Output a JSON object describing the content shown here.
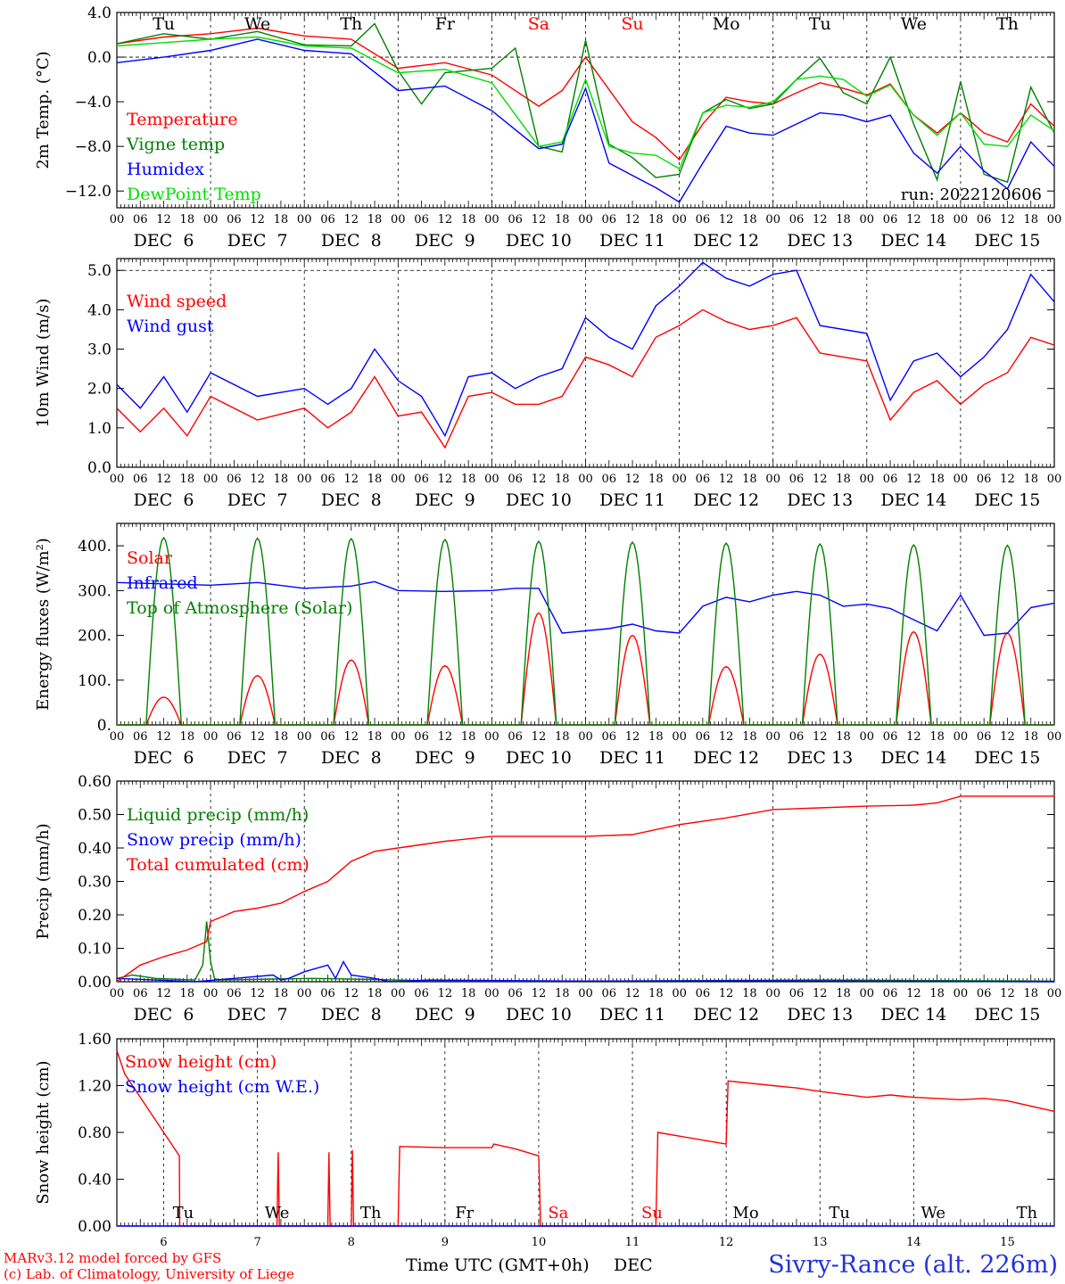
{
  "colors": {
    "red": "#ff0000",
    "green": "#008000",
    "light_green": "#00e000",
    "blue": "#0000ff",
    "black": "#000000",
    "title_blue": "#2233dd"
  },
  "days": {
    "dates": [
      "DEC  6",
      "DEC  7",
      "DEC  8",
      "DEC  9",
      "DEC 10",
      "DEC 11",
      "DEC 12",
      "DEC 13",
      "DEC 14",
      "DEC 15"
    ],
    "weekdays": [
      "Tu",
      "We",
      "Th",
      "Fr",
      "Sa",
      "Su",
      "Mo",
      "Tu",
      "We",
      "Th"
    ],
    "weekend_flags": [
      false,
      false,
      false,
      false,
      true,
      true,
      false,
      false,
      false,
      false
    ],
    "bottom_numbers": [
      "6",
      "7",
      "8",
      "9",
      "10",
      "11",
      "12",
      "13",
      "14",
      "15"
    ],
    "hour_labels": [
      "00",
      "06",
      "12",
      "18"
    ],
    "final_hour_label": "00"
  },
  "footer": {
    "credit_line1": "MARv3.12 model forced by GFS",
    "credit_line2": "(c) Lab. of Climatology, University of Liege",
    "axis_label": "Time UTC (GMT+0h)",
    "axis_month": "DEC",
    "station": "Sivry-Rance (alt. 226m)"
  },
  "chart_data": [
    {
      "type": "line",
      "ylabel": "2m Temp. (°C)",
      "ylim": [
        -13.5,
        4.0
      ],
      "yticks": [
        4.0,
        0.0,
        -4.0,
        -8.0,
        -12.0
      ],
      "ytick_labels": [
        "4.0",
        "0.0",
        "−4.0",
        "−8.0",
        "−12.0"
      ],
      "ref_line": 0.0,
      "x_unit": "hours since DEC 6 00 UTC",
      "xlim": [
        0,
        240
      ],
      "annotation": "run: 2022120606",
      "series": [
        {
          "name": "Temperature",
          "color": "#ff0000",
          "x": [
            0,
            12,
            24,
            36,
            48,
            60,
            72,
            84,
            96,
            108,
            114,
            120,
            132,
            138,
            144,
            150,
            156,
            162,
            168,
            174,
            180,
            186,
            192,
            198,
            204,
            210,
            216,
            222,
            228,
            234,
            240
          ],
          "y": [
            1.2,
            1.8,
            2.1,
            2.6,
            1.9,
            1.6,
            -1.0,
            -0.5,
            -1.6,
            -4.4,
            -3.0,
            0.0,
            -5.8,
            -7.2,
            -9.2,
            -6.0,
            -3.6,
            -4.0,
            -4.2,
            -3.2,
            -2.3,
            -2.8,
            -3.4,
            -2.4,
            -5.2,
            -6.8,
            -5.0,
            -6.8,
            -7.6,
            -4.2,
            -6.2
          ]
        },
        {
          "name": "Vigne temp",
          "color": "#008000",
          "x": [
            0,
            12,
            24,
            36,
            48,
            60,
            66,
            72,
            78,
            84,
            96,
            102,
            108,
            114,
            120,
            126,
            132,
            138,
            144,
            150,
            156,
            162,
            168,
            174,
            180,
            186,
            192,
            198,
            204,
            210,
            216,
            222,
            228,
            234,
            240
          ],
          "y": [
            1.2,
            2.1,
            1.6,
            2.3,
            1.1,
            1.0,
            3.0,
            -1.2,
            -4.2,
            -1.4,
            -1.0,
            0.8,
            -8.0,
            -8.5,
            1.5,
            -7.8,
            -9.0,
            -10.8,
            -10.5,
            -5.0,
            -3.8,
            -4.6,
            -4.2,
            -2.0,
            -0.1,
            -3.2,
            -4.2,
            0.0,
            -6.0,
            -11.0,
            -2.2,
            -10.5,
            -11.2,
            -2.7,
            -6.8
          ]
        },
        {
          "name": "Humidex",
          "color": "#0000ff",
          "x": [
            0,
            12,
            24,
            36,
            48,
            60,
            72,
            84,
            96,
            108,
            114,
            120,
            126,
            132,
            138,
            144,
            150,
            156,
            162,
            168,
            174,
            180,
            186,
            192,
            198,
            204,
            210,
            216,
            222,
            228,
            234,
            240
          ],
          "y": [
            -0.5,
            0.0,
            0.6,
            1.6,
            0.6,
            0.3,
            -3.0,
            -2.6,
            -4.8,
            -8.2,
            -7.8,
            -2.8,
            -9.5,
            -10.6,
            -11.7,
            -13.0,
            -9.5,
            -6.2,
            -6.8,
            -7.0,
            -6.0,
            -5.0,
            -5.2,
            -5.8,
            -5.2,
            -8.6,
            -10.4,
            -8.0,
            -10.2,
            -11.8,
            -7.6,
            -9.8
          ]
        },
        {
          "name": "DewPoint Temp",
          "color": "#00e000",
          "x": [
            0,
            12,
            24,
            36,
            48,
            60,
            72,
            84,
            96,
            108,
            114,
            120,
            126,
            132,
            138,
            144,
            150,
            156,
            162,
            168,
            174,
            180,
            186,
            192,
            198,
            204,
            210,
            216,
            222,
            228,
            234,
            240
          ],
          "y": [
            1.0,
            1.3,
            1.6,
            1.8,
            1.0,
            0.8,
            -1.4,
            -1.1,
            -2.3,
            -8.0,
            -7.6,
            -2.0,
            -8.0,
            -8.6,
            -8.8,
            -10.0,
            -5.0,
            -4.3,
            -4.5,
            -4.0,
            -2.0,
            -1.7,
            -2.0,
            -3.5,
            -2.5,
            -5.2,
            -7.0,
            -5.0,
            -7.8,
            -8.0,
            -5.2,
            -6.6
          ]
        }
      ]
    },
    {
      "type": "line",
      "ylabel": "10m Wind (m/s)",
      "ylim": [
        0.0,
        5.3
      ],
      "yticks": [
        0.0,
        1.0,
        2.0,
        3.0,
        4.0,
        5.0
      ],
      "ytick_labels": [
        "0.0",
        "1.0",
        "2.0",
        "3.0",
        "4.0",
        "5.0"
      ],
      "ref_line": 5.0,
      "xlim": [
        0,
        240
      ],
      "series": [
        {
          "name": "Wind speed",
          "color": "#ff0000",
          "x": [
            0,
            6,
            12,
            18,
            24,
            36,
            48,
            54,
            60,
            66,
            72,
            78,
            84,
            90,
            96,
            102,
            108,
            114,
            120,
            126,
            132,
            138,
            144,
            150,
            156,
            162,
            168,
            174,
            180,
            186,
            192,
            198,
            204,
            210,
            216,
            222,
            228,
            234,
            240
          ],
          "y": [
            1.5,
            0.9,
            1.5,
            0.8,
            1.8,
            1.2,
            1.5,
            1.0,
            1.4,
            2.3,
            1.3,
            1.4,
            0.5,
            1.8,
            1.9,
            1.6,
            1.6,
            1.8,
            2.8,
            2.6,
            2.3,
            3.3,
            3.6,
            4.0,
            3.7,
            3.5,
            3.6,
            3.8,
            2.9,
            2.8,
            2.7,
            1.2,
            1.9,
            2.2,
            1.6,
            2.1,
            2.4,
            3.3,
            3.1
          ]
        },
        {
          "name": "Wind gust",
          "color": "#0000ff",
          "x": [
            0,
            6,
            12,
            18,
            24,
            36,
            48,
            54,
            60,
            66,
            72,
            78,
            84,
            90,
            96,
            102,
            108,
            114,
            120,
            126,
            132,
            138,
            144,
            150,
            156,
            162,
            168,
            174,
            180,
            186,
            192,
            198,
            204,
            210,
            216,
            222,
            228,
            234,
            240
          ],
          "y": [
            2.1,
            1.5,
            2.3,
            1.4,
            2.4,
            1.8,
            2.0,
            1.6,
            2.0,
            3.0,
            2.2,
            1.8,
            0.8,
            2.3,
            2.4,
            2.0,
            2.3,
            2.5,
            3.8,
            3.3,
            3.0,
            4.1,
            4.6,
            5.2,
            4.8,
            4.6,
            4.9,
            5.0,
            3.6,
            3.5,
            3.4,
            1.7,
            2.7,
            2.9,
            2.3,
            2.8,
            3.5,
            4.9,
            4.2
          ]
        }
      ]
    },
    {
      "type": "line",
      "ylabel": "Energy fluxes (W/m²)",
      "ylim": [
        0,
        450
      ],
      "yticks": [
        0,
        100,
        200,
        300,
        400
      ],
      "ytick_labels": [
        "0.",
        "100.",
        "200.",
        "300.",
        "400."
      ],
      "xlim": [
        0,
        240
      ],
      "diurnal": {
        "sunrise_hour": 7.5,
        "sunset_hour": 16.5
      },
      "series": [
        {
          "name": "Solar",
          "color": "#ff0000",
          "daily_peaks": [
            62,
            110,
            145,
            132,
            250,
            200,
            130,
            158,
            208,
            205
          ]
        },
        {
          "name": "Infrared",
          "color": "#0000ff",
          "x": [
            0,
            12,
            24,
            36,
            48,
            60,
            66,
            72,
            84,
            96,
            102,
            108,
            114,
            120,
            126,
            132,
            138,
            144,
            150,
            156,
            162,
            168,
            174,
            180,
            186,
            192,
            198,
            204,
            210,
            216,
            222,
            228,
            234,
            240
          ],
          "y": [
            318,
            315,
            312,
            318,
            305,
            310,
            320,
            300,
            298,
            300,
            305,
            305,
            205,
            210,
            215,
            225,
            210,
            205,
            265,
            285,
            275,
            290,
            298,
            290,
            265,
            270,
            260,
            235,
            210,
            290,
            200,
            205,
            262,
            272
          ]
        },
        {
          "name": "Top of Atmosphere (Solar)",
          "color": "#008000",
          "daily_peaks": [
            418,
            417,
            416,
            414,
            410,
            408,
            406,
            404,
            402,
            401
          ]
        }
      ]
    },
    {
      "type": "line",
      "ylabel": "Precip (mm/h)",
      "ylim": [
        0.0,
        0.6
      ],
      "yticks": [
        0.0,
        0.1,
        0.2,
        0.3,
        0.4,
        0.5,
        0.6
      ],
      "ytick_labels": [
        "0.00",
        "0.10",
        "0.20",
        "0.30",
        "0.40",
        "0.50",
        "0.60"
      ],
      "xlim": [
        0,
        240
      ],
      "series": [
        {
          "name": "Liquid precip (mm/h)",
          "color": "#008000",
          "x": [
            0,
            4,
            10,
            20,
            22,
            23,
            24,
            25,
            26,
            40,
            50,
            60,
            80,
            120,
            180,
            200,
            240
          ],
          "y": [
            0.01,
            0.02,
            0.01,
            0.005,
            0.05,
            0.18,
            0.06,
            0.01,
            0.005,
            0.008,
            0.01,
            0.008,
            0.003,
            0.002,
            0.005,
            0.004,
            0.002
          ]
        },
        {
          "name": "Snow precip (mm/h)",
          "color": "#0000ff",
          "x": [
            0,
            10,
            20,
            30,
            40,
            42,
            44,
            48,
            54,
            56,
            58,
            60,
            66,
            70,
            80,
            120,
            160,
            240
          ],
          "y": [
            0.01,
            0.005,
            0.0,
            0.01,
            0.02,
            0.005,
            0.01,
            0.03,
            0.05,
            0.01,
            0.06,
            0.02,
            0.01,
            0.0,
            0.005,
            0.002,
            0.003,
            0.0
          ]
        },
        {
          "name": "Total cumulated (cm)",
          "color": "#ff0000",
          "x": [
            0,
            6,
            12,
            18,
            23,
            24,
            30,
            36,
            42,
            48,
            54,
            60,
            66,
            72,
            84,
            96,
            108,
            120,
            132,
            144,
            156,
            168,
            180,
            192,
            204,
            210,
            216,
            240
          ],
          "y": [
            0.0,
            0.05,
            0.075,
            0.095,
            0.12,
            0.18,
            0.21,
            0.22,
            0.235,
            0.27,
            0.3,
            0.36,
            0.39,
            0.4,
            0.42,
            0.435,
            0.435,
            0.435,
            0.44,
            0.47,
            0.49,
            0.515,
            0.52,
            0.525,
            0.528,
            0.535,
            0.555,
            0.555
          ]
        }
      ]
    },
    {
      "type": "line",
      "ylabel": "Snow height (cm)",
      "ylim": [
        0.0,
        1.6
      ],
      "yticks": [
        0.0,
        0.4,
        0.8,
        1.2,
        1.6
      ],
      "ytick_labels": [
        "0.00",
        "0.40",
        "0.80",
        "1.20",
        "1.60"
      ],
      "xlim": [
        0,
        240
      ],
      "series": [
        {
          "name": "Snow height (cm)",
          "color": "#ff0000",
          "x": [
            0,
            2,
            6,
            10,
            14,
            16,
            16.1,
            41,
            41.3,
            41.6,
            54,
            54.3,
            54.6,
            60,
            60.3,
            60.6,
            72,
            72.4,
            84,
            96,
            102,
            96.5,
            108,
            108.5,
            138,
            138.5,
            156,
            156.5,
            168,
            174,
            180,
            192,
            198,
            204,
            216,
            222,
            228,
            240
          ],
          "y": [
            1.5,
            1.3,
            1.1,
            0.9,
            0.7,
            0.6,
            0.0,
            0.0,
            0.63,
            0.0,
            0.0,
            0.63,
            0.0,
            0.0,
            0.65,
            0.0,
            0.0,
            0.68,
            0.67,
            0.67,
            0.66,
            0.7,
            0.6,
            0.0,
            0.0,
            0.8,
            0.7,
            1.24,
            1.2,
            1.18,
            1.15,
            1.1,
            1.12,
            1.1,
            1.08,
            1.09,
            1.07,
            0.98
          ]
        },
        {
          "name": "Snow height (cm W.E.)",
          "color": "#0000ff",
          "x": [
            0,
            240
          ],
          "y": [
            0.0,
            0.0
          ]
        }
      ]
    }
  ]
}
